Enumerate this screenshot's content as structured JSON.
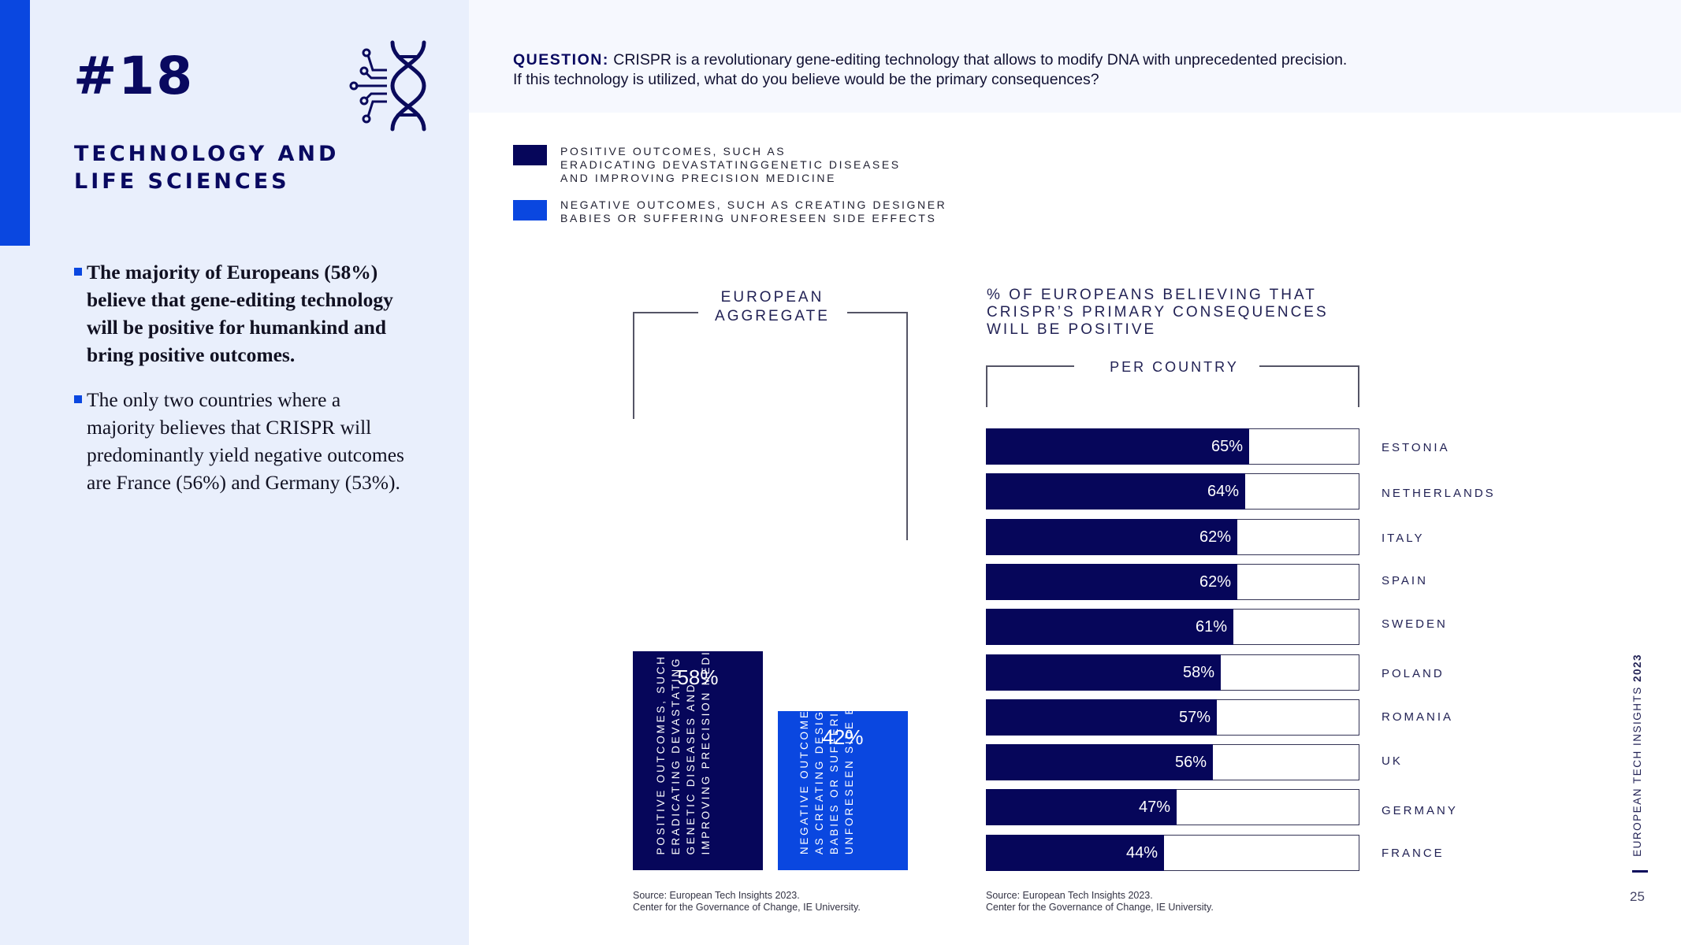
{
  "sidebar": {
    "number": "#18",
    "title_lines": [
      "TECHNOLOGY AND",
      "LIFE SCIENCES"
    ],
    "bullets": [
      "The majority of Europeans (58%) believe that gene-editing technology will be positive for humankind and bring positive outcomes.",
      "The only two countries where a majority believes that CRISPR will predominantly yield negative outcomes are France (56%) and Germany (53%)."
    ]
  },
  "question": {
    "label": "QUESTION:",
    "line1": "CRISPR is a revolutionary gene-editing technology that allows to modify DNA with unprecedented precision.",
    "line2": "If this technology is utilized, what do you believe would be the primary consequences?"
  },
  "legend": [
    {
      "lines": [
        "POSITIVE OUTCOMES, SUCH AS",
        "ERADICATING DEVASTATINGGENETIC DISEASES",
        "AND IMPROVING PRECISION MEDICINE"
      ],
      "color": "#06065a"
    },
    {
      "lines": [
        "NEGATIVE OUTCOMES, SUCH AS CREATING DESIGNER",
        "BABIES OR SUFFERING UNFORESEEN SIDE EFFECTS"
      ],
      "color": "#0a47e0"
    }
  ],
  "chart_data": [
    {
      "type": "bar",
      "title_lines": [
        "EUROPEAN",
        "AGGREGATE"
      ],
      "categories": [
        "Positive outcomes",
        "Negative outcomes"
      ],
      "values": [
        58,
        42
      ],
      "value_labels": [
        "58%",
        "42%"
      ],
      "bar_labels": [
        "POSITIVE OUTCOMES, SUCH AS\nERADICATING DEVASTATING\nGENETIC DISEASES AND\nIMPROVING PRECISION MEDICINE",
        "NEGATIVE OUTCOMES, SUCH\nAS CREATING DESIGNER\nBABIES OR SUFFERING\nUNFORESEEN SIDE EFFECTS"
      ],
      "colors": [
        "#06065a",
        "#0a47e0"
      ],
      "ylim": [
        0,
        100
      ],
      "source_lines": [
        "Source: European Tech Insights 2023.",
        "Center for the Governance of Change, IE University."
      ]
    },
    {
      "type": "bar",
      "orientation": "horizontal",
      "title_lines": [
        "% OF EUROPEANS BELIEVING THAT",
        "CRISPR’S PRIMARY CONSEQUENCES",
        "WILL BE POSITIVE"
      ],
      "subtitle": "PER COUNTRY",
      "categories": [
        "ESTONIA",
        "NETHERLANDS",
        "ITALY",
        "SPAIN",
        "SWEDEN",
        "POLAND",
        "ROMANIA",
        "UK",
        "GERMANY",
        "FRANCE"
      ],
      "values": [
        65,
        64,
        62,
        62,
        61,
        58,
        57,
        56,
        47,
        44
      ],
      "value_labels": [
        "65%",
        "64%",
        "62%",
        "62%",
        "61%",
        "58%",
        "57%",
        "56%",
        "47%",
        "44%"
      ],
      "xlim": [
        0,
        100
      ],
      "color": "#06065a",
      "source_lines": [
        "Source: European Tech Insights 2023.",
        "Center for the Governance of Change, IE University."
      ]
    }
  ],
  "footer": {
    "text": "EUROPEAN TECH INSIGHTS ",
    "year": "2023",
    "page": "25"
  }
}
